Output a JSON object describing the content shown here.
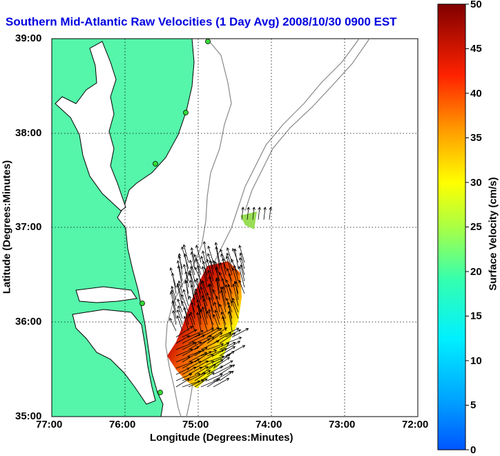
{
  "title": "Southern Mid-Atlantic Raw Velocities (1 Day Avg) 2008/10/30 0900 EST",
  "map": {
    "xlabel": "Longitude (Degrees:Minutes)",
    "ylabel": "Latitude (Degrees:Minutes)",
    "x_ticks": [
      "77:00",
      "76:00",
      "75:00",
      "74:00",
      "73:00",
      "72:00"
    ],
    "y_ticks": [
      "39:00",
      "38:00",
      "37:00",
      "36:00",
      "35:00"
    ],
    "colors": {
      "land": "#55f5aa",
      "bathymetry": "#888888",
      "coast": "#000000",
      "station": "#33dd33"
    }
  },
  "colorbar": {
    "label": "Surface Velocity (cm/s)",
    "ticks": [
      "50",
      "45",
      "40",
      "35",
      "30",
      "25",
      "20",
      "15",
      "10",
      "5",
      "0"
    ],
    "range": [
      0,
      50
    ]
  }
}
